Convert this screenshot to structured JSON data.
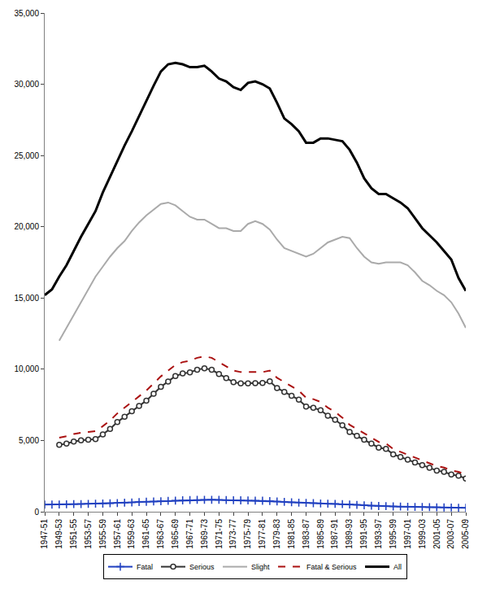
{
  "chart_data": {
    "type": "line",
    "categories": [
      "1947-51",
      null,
      "1949-53",
      null,
      "1951-55",
      null,
      "1953-57",
      null,
      "1955-59",
      null,
      "1957-61",
      null,
      "1959-63",
      null,
      "1961-65",
      null,
      "1963-67",
      null,
      "1965-69",
      null,
      "1967-71",
      null,
      "1969-73",
      null,
      "1971-75",
      null,
      "1973-77",
      null,
      "1975-79",
      null,
      "1977-81",
      null,
      "1979-83",
      null,
      "1981-85",
      null,
      "1983-87",
      null,
      "1985-89",
      null,
      "1987-91",
      null,
      "1989-93",
      null,
      "1991-95",
      null,
      "1993-97",
      null,
      "1995-99",
      null,
      "1997-01",
      null,
      "1999-03",
      null,
      "2001-05",
      null,
      "2003-07",
      null,
      "2005-09"
    ],
    "series": [
      {
        "name": "Fatal",
        "color": "#2040c0",
        "marker": "cross",
        "line_style": "solid",
        "values": [
          500,
          500,
          510,
          520,
          530,
          540,
          550,
          560,
          570,
          590,
          610,
          630,
          650,
          680,
          700,
          720,
          740,
          760,
          780,
          800,
          820,
          830,
          840,
          840,
          830,
          820,
          810,
          800,
          790,
          780,
          770,
          750,
          720,
          690,
          660,
          640,
          620,
          600,
          580,
          560,
          550,
          530,
          510,
          480,
          450,
          420,
          400,
          390,
          370,
          360,
          350,
          340,
          330,
          320,
          310,
          300,
          290,
          280,
          270
        ]
      },
      {
        "name": "Serious",
        "color": "#333333",
        "marker": "circle",
        "line_style": "solid",
        "values": [
          null,
          null,
          4690,
          4780,
          4920,
          5010,
          5050,
          5090,
          5430,
          5810,
          6290,
          6670,
          7050,
          7420,
          7800,
          8280,
          8760,
          9140,
          9520,
          9700,
          9780,
          9970,
          10060,
          9960,
          9670,
          9380,
          9090,
          9000,
          9010,
          9020,
          9030,
          9150,
          8680,
          8410,
          8140,
          7860,
          7380,
          7300,
          7120,
          6740,
          6450,
          6070,
          5590,
          5320,
          5050,
          4780,
          4500,
          4410,
          4030,
          3840,
          3650,
          3460,
          3270,
          3080,
          2890,
          2800,
          2610,
          2520,
          2330
        ]
      },
      {
        "name": "Slight",
        "color": "#aaaaaa",
        "marker": "none",
        "line_style": "solid",
        "values": [
          null,
          null,
          12000,
          12900,
          13800,
          14700,
          15600,
          16500,
          17200,
          17900,
          18500,
          19000,
          19700,
          20300,
          20800,
          21200,
          21600,
          21700,
          21500,
          21100,
          20700,
          20500,
          20500,
          20200,
          19900,
          19900,
          19700,
          19700,
          20200,
          20400,
          20200,
          19800,
          19100,
          18500,
          18300,
          18100,
          17900,
          18100,
          18500,
          18900,
          19100,
          19300,
          19200,
          18500,
          17900,
          17500,
          17400,
          17500,
          17500,
          17500,
          17300,
          16800,
          16200,
          15900,
          15500,
          15200,
          14700,
          13900,
          12900
        ]
      },
      {
        "name": "Fatal & Serious",
        "color": "#aa1111",
        "marker": "none",
        "line_style": "dashed",
        "values": [
          null,
          null,
          5200,
          5300,
          5450,
          5550,
          5600,
          5650,
          6000,
          6400,
          6900,
          7300,
          7700,
          8100,
          8500,
          9000,
          9500,
          9900,
          10300,
          10500,
          10600,
          10800,
          10900,
          10800,
          10500,
          10200,
          9900,
          9800,
          9800,
          9800,
          9800,
          9900,
          9400,
          9100,
          8800,
          8500,
          8000,
          7900,
          7700,
          7300,
          7000,
          6600,
          6100,
          5800,
          5500,
          5200,
          4900,
          4800,
          4400,
          4200,
          4000,
          3800,
          3600,
          3400,
          3200,
          3100,
          2900,
          2800,
          2600
        ]
      },
      {
        "name": "All",
        "color": "#000000",
        "marker": "none",
        "line_style": "solid",
        "values": [
          15200,
          15600,
          16500,
          17300,
          18300,
          19300,
          20200,
          21100,
          22400,
          23500,
          24700,
          25700,
          26700,
          27800,
          28900,
          29900,
          30900,
          31400,
          31500,
          31400,
          31200,
          31200,
          31300,
          30900,
          30400,
          30200,
          29800,
          29600,
          30100,
          30200,
          30000,
          29700,
          28700,
          27600,
          27200,
          26700,
          25900,
          25900,
          26200,
          26200,
          26100,
          26000,
          25400,
          24500,
          23400,
          22700,
          22300,
          22300,
          22000,
          21700,
          21300,
          20600,
          19900,
          19400,
          18900,
          18300,
          17700,
          16400,
          15500
        ]
      }
    ],
    "ylim": [
      0,
      35000
    ],
    "yticks": [
      0,
      {
        "value": 5000,
        "label": "5,000"
      },
      {
        "value": 10000,
        "label": "10,000"
      },
      {
        "value": 15000,
        "label": "15,000"
      },
      {
        "value": 20000,
        "label": "20,000"
      },
      {
        "value": 25000,
        "label": "25,000"
      },
      {
        "value": 30000,
        "label": "30,000"
      },
      {
        "value": 35000,
        "label": "35,000"
      }
    ],
    "grid": false,
    "legend": "bottom"
  }
}
